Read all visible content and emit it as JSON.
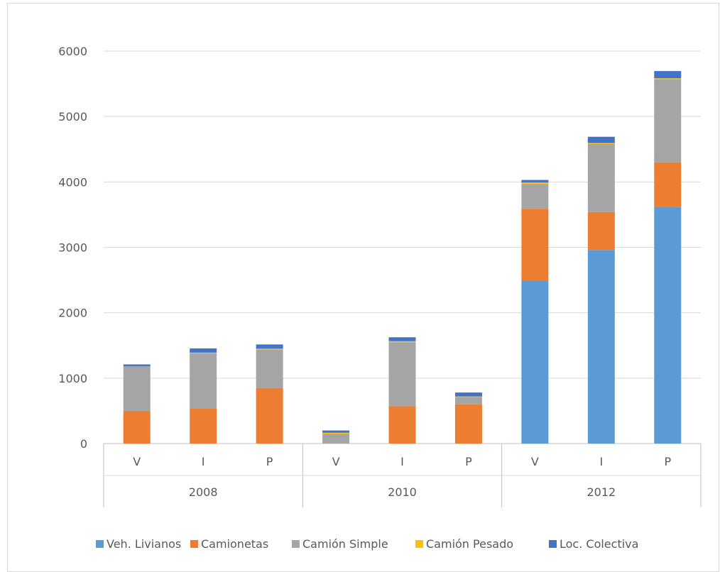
{
  "page": {
    "title": ""
  },
  "chart_data": {
    "type": "bar",
    "stacked": true,
    "title": "",
    "xlabel": "",
    "ylabel": "",
    "ylim": [
      0,
      6000
    ],
    "yticks": [
      0,
      1000,
      2000,
      3000,
      4000,
      5000,
      6000
    ],
    "grid": true,
    "legend_position": "bottom",
    "groups": [
      "2008",
      "2010",
      "2012"
    ],
    "categories": [
      "V",
      "I",
      "P",
      "V",
      "I",
      "P",
      "V",
      "I",
      "P"
    ],
    "series": [
      {
        "name": "Veh. Livianos",
        "color": "#5b9bd5",
        "values": [
          0,
          0,
          0,
          0,
          0,
          0,
          2490,
          2960,
          3620
        ]
      },
      {
        "name": "Camionetas",
        "color": "#ed7d31",
        "values": [
          500,
          540,
          850,
          0,
          570,
          600,
          1100,
          580,
          680
        ]
      },
      {
        "name": "Camión Simple",
        "color": "#a5a5a5",
        "values": [
          680,
          840,
          590,
          150,
          980,
          110,
          380,
          1040,
          1270
        ]
      },
      {
        "name": "Camión Pesado",
        "color": "#ffc000",
        "values": [
          0,
          10,
          10,
          15,
          15,
          10,
          20,
          15,
          15
        ]
      },
      {
        "name": "Loc. Colectiva",
        "color": "#4472c4",
        "values": [
          30,
          65,
          65,
          35,
          60,
          60,
          40,
          95,
          110
        ]
      }
    ]
  }
}
